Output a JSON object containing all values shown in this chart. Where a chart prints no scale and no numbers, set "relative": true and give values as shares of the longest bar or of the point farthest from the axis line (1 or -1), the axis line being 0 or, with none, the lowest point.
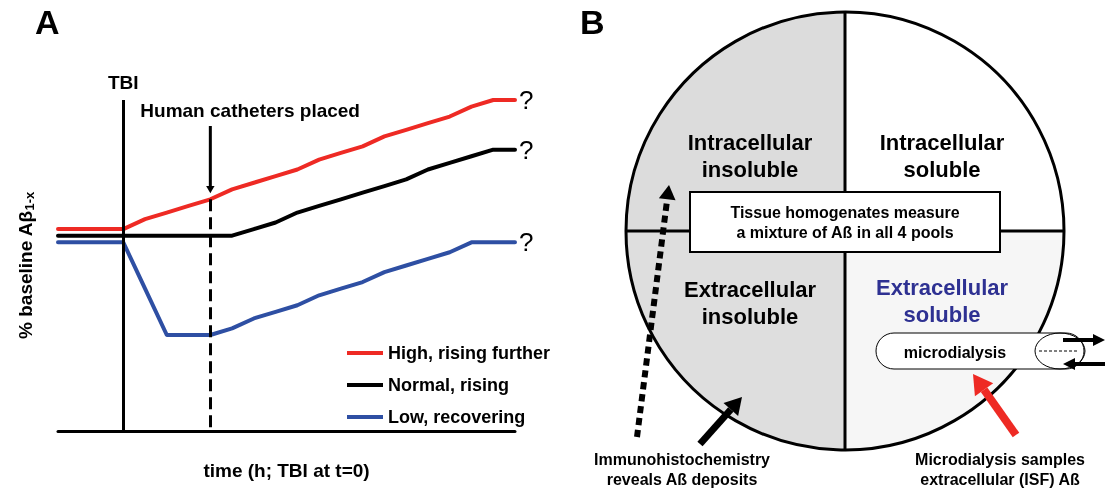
{
  "chart_data": [
    {
      "type": "line",
      "title": "A",
      "xlabel": "time (h; TBI at t=0)",
      "ylabel": "% baseline Aβ$_{1-x}$",
      "relative": true,
      "categories": [
        null,
        null,
        null,
        null,
        null,
        null,
        null,
        null,
        null,
        null,
        null,
        null,
        null,
        null,
        null,
        null,
        null,
        null,
        null,
        null,
        null,
        null
      ],
      "series": [
        {
          "name": "High, rising further",
          "color": "#ee2a24",
          "values": [
            0.61,
            0.61,
            0.61,
            0.61,
            0.64,
            0.66,
            0.68,
            0.7,
            0.73,
            0.75,
            0.77,
            0.79,
            0.82,
            0.84,
            0.86,
            0.89,
            0.91,
            0.93,
            0.95,
            0.98,
            1,
            1
          ]
        },
        {
          "name": "Normal, rising",
          "color": "#000000",
          "values": [
            0.59,
            0.59,
            0.59,
            0.59,
            0.59,
            0.59,
            0.59,
            0.59,
            0.59,
            0.61,
            0.63,
            0.66,
            0.68,
            0.7,
            0.72,
            0.74,
            0.76,
            0.79,
            0.81,
            0.83,
            0.85,
            0.85
          ]
        },
        {
          "name": "Low, recovering",
          "color": "#2e4fa3",
          "values": [
            0.57,
            0.57,
            0.57,
            0.57,
            0.43,
            0.29,
            0.29,
            0.29,
            0.31,
            0.34,
            0.36,
            0.38,
            0.41,
            0.43,
            0.45,
            0.48,
            0.5,
            0.52,
            0.54,
            0.57,
            0.57,
            0.57
          ]
        }
      ],
      "annotations": [
        "TBI",
        "Human catheters placed",
        "?",
        "?",
        "?"
      ],
      "legend": "bottom right",
      "marker": "none",
      "line_style": "solid",
      "grid": false
    },
    {
      "type": "other",
      "title": "B",
      "annotations": [
        "Intracellular\ninsoluble",
        "Intracellular\nsoluble",
        "Extracellular\ninsoluble",
        "Extracellular\nsoluble",
        "Tissue homogenates measure\na mixture of Aß in all 4 pools",
        "microdialysis",
        "Immunohistochemistry\nreveals Aß deposits",
        "Microdialysis samples\nextracellular (ISF) Aß"
      ]
    }
  ]
}
